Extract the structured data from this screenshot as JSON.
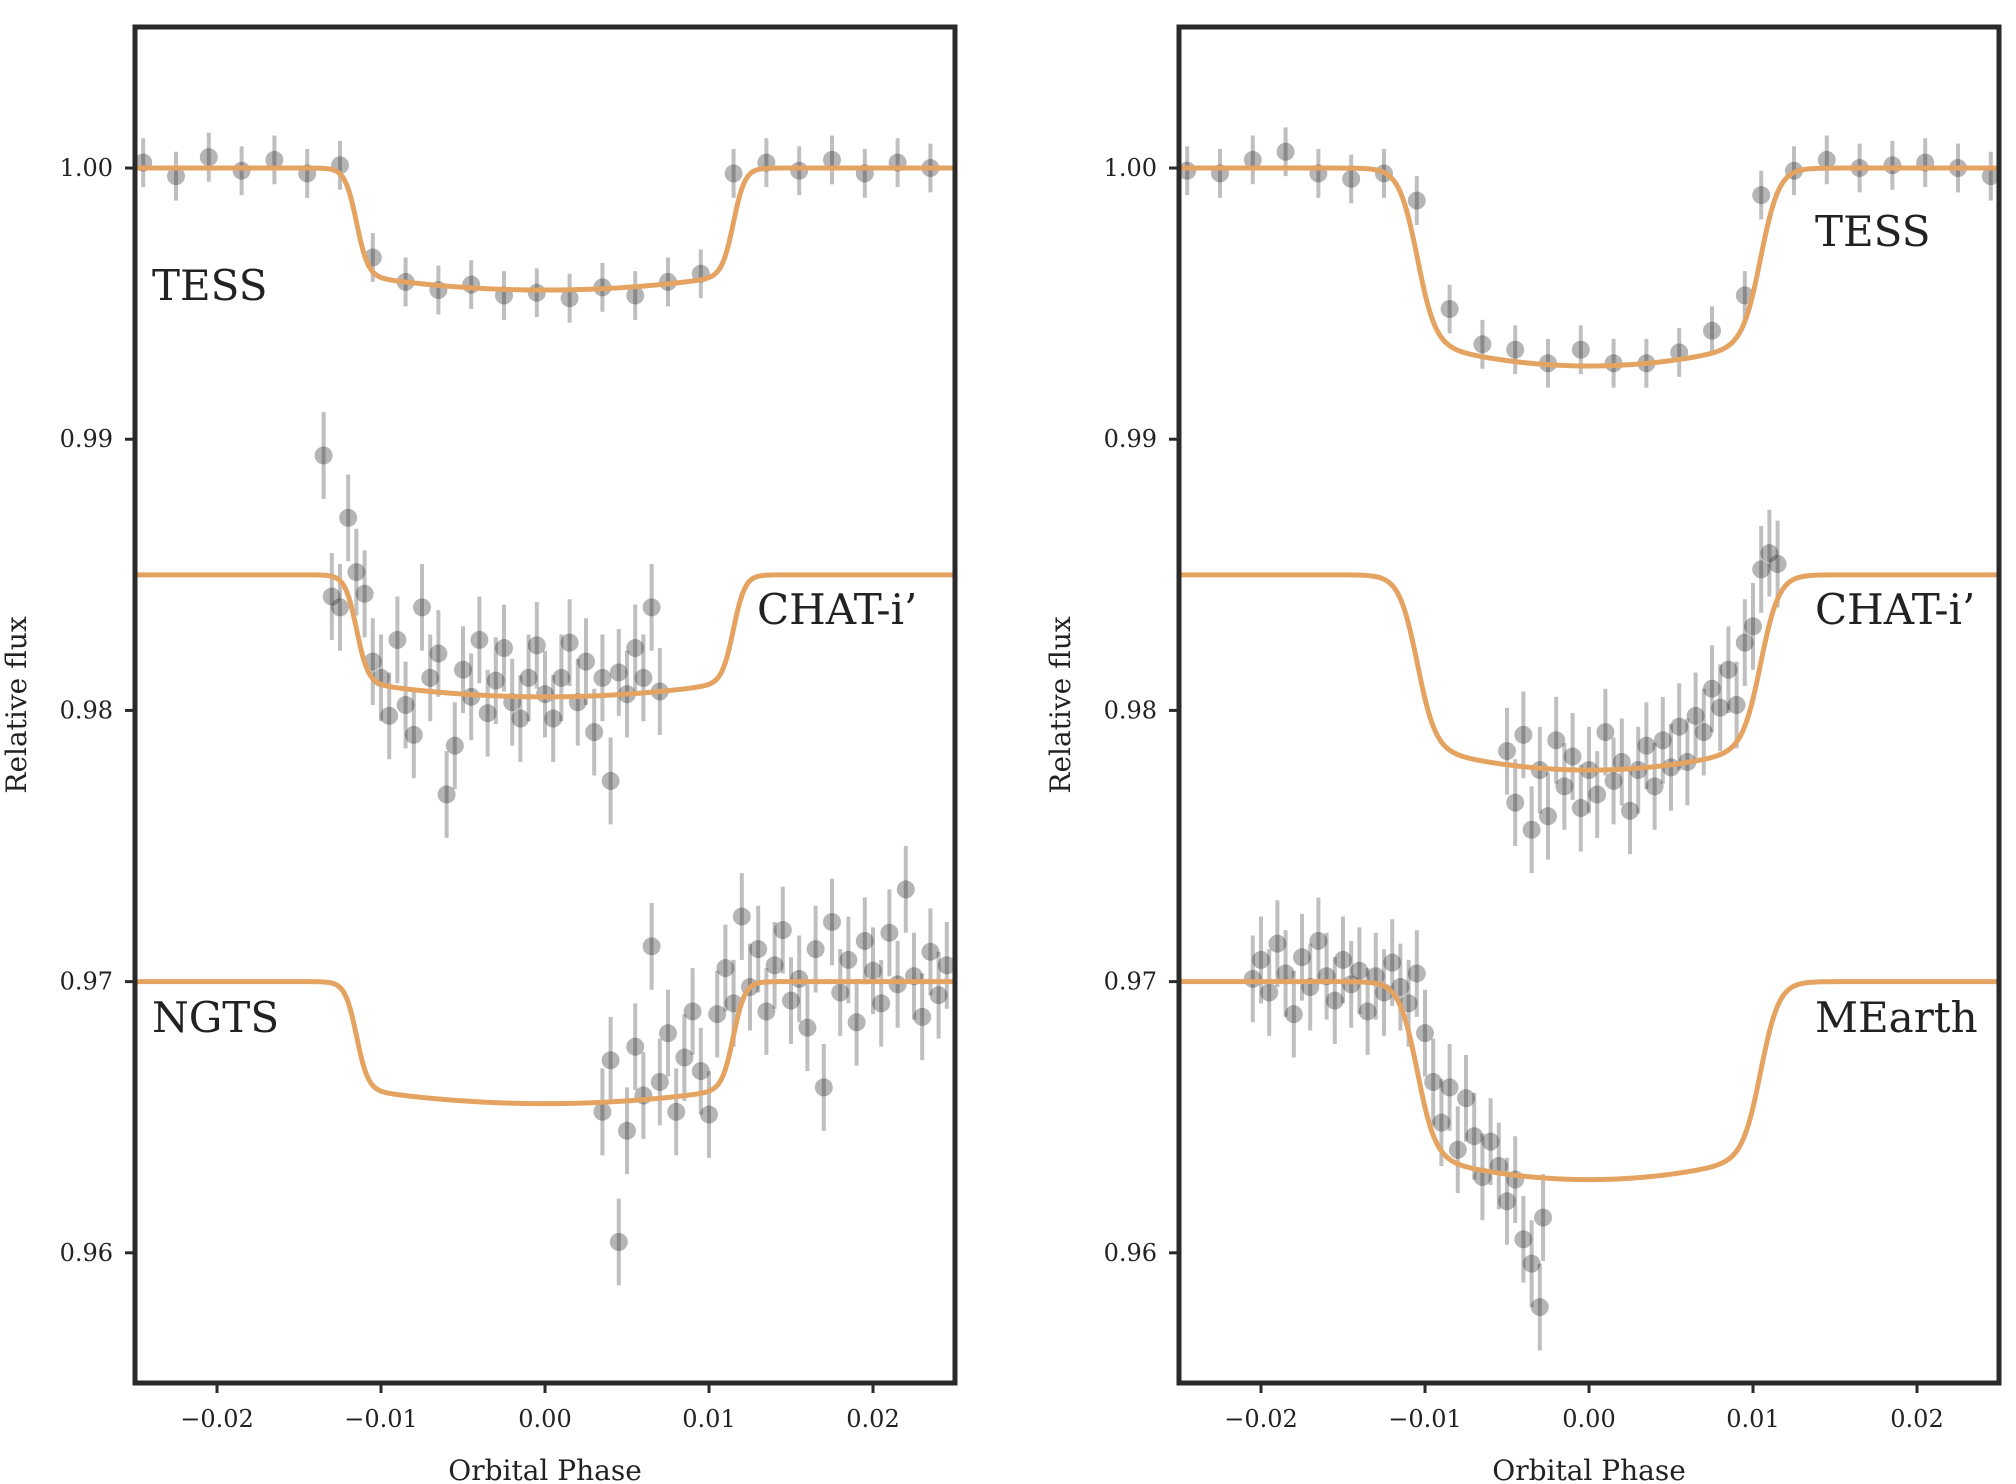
{
  "chart_data": [
    {
      "type": "scatter",
      "panel": "left",
      "xlabel": "Orbital Phase",
      "ylabel": "Relative flux",
      "xlim": [
        -0.025,
        0.025
      ],
      "ylim": [
        0.9552,
        1.0052
      ],
      "xticks": [
        -0.02,
        -0.01,
        0.0,
        0.01,
        0.02
      ],
      "xtick_labels": [
        "−0.02",
        "−0.01",
        "0.00",
        "0.01",
        "0.02"
      ],
      "yticks": [
        0.96,
        0.97,
        0.98,
        0.99,
        1.0
      ],
      "ytick_labels": [
        "0.96",
        "0.97",
        "0.98",
        "0.99",
        "1.00"
      ],
      "grid": false,
      "series": [
        {
          "name": "TESS",
          "model": {
            "baseline": 1.0,
            "depth": 0.0045,
            "t_ingress": -0.0115,
            "t_egress": 0.0115,
            "ingress_width": 0.0014
          },
          "data_points": [
            [
              -0.0245,
              1.0002
            ],
            [
              -0.0225,
              0.9997
            ],
            [
              -0.0205,
              1.0004
            ],
            [
              -0.0185,
              0.9999
            ],
            [
              -0.0165,
              1.0003
            ],
            [
              -0.0145,
              0.9998
            ],
            [
              -0.0125,
              1.0001
            ],
            [
              -0.0105,
              0.9967
            ],
            [
              -0.0085,
              0.9958
            ],
            [
              -0.0065,
              0.9955
            ],
            [
              -0.0045,
              0.9957
            ],
            [
              -0.0025,
              0.9953
            ],
            [
              -0.0005,
              0.9954
            ],
            [
              0.0015,
              0.9952
            ],
            [
              0.0035,
              0.9956
            ],
            [
              0.0055,
              0.9953
            ],
            [
              0.0075,
              0.9958
            ],
            [
              0.0095,
              0.9961
            ],
            [
              0.0115,
              0.9998
            ],
            [
              0.0135,
              1.0002
            ],
            [
              0.0155,
              0.9999
            ],
            [
              0.0175,
              1.0003
            ],
            [
              0.0195,
              0.9998
            ],
            [
              0.0215,
              1.0002
            ],
            [
              0.0235,
              1.0
            ]
          ]
        },
        {
          "name": "CHAT-i’",
          "model": {
            "baseline": 0.985,
            "depth": 0.0045,
            "t_ingress": -0.0115,
            "t_egress": 0.0115,
            "ingress_width": 0.0014
          },
          "data_points": [
            [
              -0.0135,
              0.9894
            ],
            [
              -0.013,
              0.9842
            ],
            [
              -0.0125,
              0.9838
            ],
            [
              -0.012,
              0.9871
            ],
            [
              -0.0115,
              0.9851
            ],
            [
              -0.011,
              0.9843
            ],
            [
              -0.0105,
              0.9818
            ],
            [
              -0.01,
              0.9812
            ],
            [
              -0.0095,
              0.9798
            ],
            [
              -0.009,
              0.9826
            ],
            [
              -0.0085,
              0.9802
            ],
            [
              -0.008,
              0.9791
            ],
            [
              -0.0075,
              0.9838
            ],
            [
              -0.007,
              0.9812
            ],
            [
              -0.0065,
              0.9821
            ],
            [
              -0.006,
              0.9769
            ],
            [
              -0.0055,
              0.9787
            ],
            [
              -0.005,
              0.9815
            ],
            [
              -0.0045,
              0.9805
            ],
            [
              -0.004,
              0.9826
            ],
            [
              -0.0035,
              0.9799
            ],
            [
              -0.003,
              0.9811
            ],
            [
              -0.0025,
              0.9823
            ],
            [
              -0.002,
              0.9803
            ],
            [
              -0.0015,
              0.9797
            ],
            [
              -0.001,
              0.9812
            ],
            [
              -0.0005,
              0.9824
            ],
            [
              0.0,
              0.9806
            ],
            [
              0.0005,
              0.9797
            ],
            [
              0.001,
              0.9812
            ],
            [
              0.0015,
              0.9825
            ],
            [
              0.002,
              0.9803
            ],
            [
              0.0025,
              0.9818
            ],
            [
              0.003,
              0.9792
            ],
            [
              0.0035,
              0.9812
            ],
            [
              0.004,
              0.9774
            ],
            [
              0.0045,
              0.9814
            ],
            [
              0.005,
              0.9806
            ],
            [
              0.0055,
              0.9823
            ],
            [
              0.006,
              0.9812
            ],
            [
              0.0065,
              0.9838
            ],
            [
              0.007,
              0.9807
            ]
          ]
        },
        {
          "name": "NGTS",
          "model": {
            "baseline": 0.97,
            "depth": 0.0045,
            "t_ingress": -0.0115,
            "t_egress": 0.0115,
            "ingress_width": 0.0014
          },
          "data_points": [
            [
              0.0035,
              0.9652
            ],
            [
              0.004,
              0.9671
            ],
            [
              0.0045,
              0.9604
            ],
            [
              0.005,
              0.9645
            ],
            [
              0.0055,
              0.9676
            ],
            [
              0.006,
              0.9658
            ],
            [
              0.0065,
              0.9713
            ],
            [
              0.007,
              0.9663
            ],
            [
              0.0075,
              0.9681
            ],
            [
              0.008,
              0.9652
            ],
            [
              0.0085,
              0.9672
            ],
            [
              0.009,
              0.9689
            ],
            [
              0.0095,
              0.9667
            ],
            [
              0.01,
              0.9651
            ],
            [
              0.0105,
              0.9688
            ],
            [
              0.011,
              0.9705
            ],
            [
              0.0115,
              0.9692
            ],
            [
              0.012,
              0.9724
            ],
            [
              0.0125,
              0.9698
            ],
            [
              0.013,
              0.9712
            ],
            [
              0.0135,
              0.9689
            ],
            [
              0.014,
              0.9706
            ],
            [
              0.0145,
              0.9719
            ],
            [
              0.015,
              0.9693
            ],
            [
              0.0155,
              0.9701
            ],
            [
              0.016,
              0.9683
            ],
            [
              0.0165,
              0.9712
            ],
            [
              0.017,
              0.9661
            ],
            [
              0.0175,
              0.9722
            ],
            [
              0.018,
              0.9696
            ],
            [
              0.0185,
              0.9708
            ],
            [
              0.019,
              0.9685
            ],
            [
              0.0195,
              0.9715
            ],
            [
              0.02,
              0.9704
            ],
            [
              0.0205,
              0.9692
            ],
            [
              0.021,
              0.9718
            ],
            [
              0.0215,
              0.9699
            ],
            [
              0.022,
              0.9734
            ],
            [
              0.0225,
              0.9702
            ],
            [
              0.023,
              0.9687
            ],
            [
              0.0235,
              0.9711
            ],
            [
              0.024,
              0.9695
            ],
            [
              0.0245,
              0.9706
            ]
          ]
        }
      ]
    },
    {
      "type": "scatter",
      "panel": "right",
      "xlabel": "Orbital Phase",
      "ylabel": "Relative flux",
      "xlim": [
        -0.025,
        0.025
      ],
      "ylim": [
        0.9552,
        1.0052
      ],
      "xticks": [
        -0.02,
        -0.01,
        0.0,
        0.01,
        0.02
      ],
      "xtick_labels": [
        "−0.02",
        "−0.01",
        "0.00",
        "0.01",
        "0.02"
      ],
      "yticks": [
        0.96,
        0.97,
        0.98,
        0.99,
        1.0
      ],
      "ytick_labels": [
        "0.96",
        "0.97",
        "0.98",
        "0.99",
        "1.00"
      ],
      "grid": false,
      "series": [
        {
          "name": "TESS",
          "model": {
            "baseline": 1.0,
            "depth": 0.0073,
            "t_ingress": -0.0105,
            "t_egress": 0.0105,
            "ingress_width": 0.0022
          },
          "data_points": [
            [
              -0.0245,
              0.9999
            ],
            [
              -0.0225,
              0.9998
            ],
            [
              -0.0205,
              1.0003
            ],
            [
              -0.0185,
              1.0006
            ],
            [
              -0.0165,
              0.9998
            ],
            [
              -0.0145,
              0.9996
            ],
            [
              -0.0125,
              0.9998
            ],
            [
              -0.0105,
              0.9988
            ],
            [
              -0.0085,
              0.9948
            ],
            [
              -0.0065,
              0.9935
            ],
            [
              -0.0045,
              0.9933
            ],
            [
              -0.0025,
              0.9928
            ],
            [
              -0.0005,
              0.9933
            ],
            [
              0.0015,
              0.9928
            ],
            [
              0.0035,
              0.9928
            ],
            [
              0.0055,
              0.9932
            ],
            [
              0.0075,
              0.994
            ],
            [
              0.0095,
              0.9953
            ],
            [
              0.0105,
              0.999
            ],
            [
              0.0125,
              0.9999
            ],
            [
              0.0145,
              1.0003
            ],
            [
              0.0165,
              1.0
            ],
            [
              0.0185,
              1.0001
            ],
            [
              0.0205,
              1.0002
            ],
            [
              0.0225,
              1.0
            ],
            [
              0.0245,
              0.9997
            ]
          ]
        },
        {
          "name": "CHAT-i’",
          "model": {
            "baseline": 0.985,
            "depth": 0.0072,
            "t_ingress": -0.0105,
            "t_egress": 0.0105,
            "ingress_width": 0.0022
          },
          "data_points": [
            [
              -0.005,
              0.9785
            ],
            [
              -0.0045,
              0.9766
            ],
            [
              -0.004,
              0.9791
            ],
            [
              -0.0035,
              0.9756
            ],
            [
              -0.003,
              0.9778
            ],
            [
              -0.0025,
              0.9761
            ],
            [
              -0.002,
              0.9789
            ],
            [
              -0.0015,
              0.9772
            ],
            [
              -0.001,
              0.9783
            ],
            [
              -0.0005,
              0.9764
            ],
            [
              0.0,
              0.9778
            ],
            [
              0.0005,
              0.9769
            ],
            [
              0.001,
              0.9792
            ],
            [
              0.0015,
              0.9774
            ],
            [
              0.002,
              0.9781
            ],
            [
              0.0025,
              0.9763
            ],
            [
              0.003,
              0.9778
            ],
            [
              0.0035,
              0.9787
            ],
            [
              0.004,
              0.9772
            ],
            [
              0.0045,
              0.9789
            ],
            [
              0.005,
              0.9779
            ],
            [
              0.0055,
              0.9794
            ],
            [
              0.006,
              0.9781
            ],
            [
              0.0065,
              0.9798
            ],
            [
              0.007,
              0.9792
            ],
            [
              0.0075,
              0.9808
            ],
            [
              0.008,
              0.9801
            ],
            [
              0.0085,
              0.9815
            ],
            [
              0.009,
              0.9802
            ],
            [
              0.0095,
              0.9825
            ],
            [
              0.01,
              0.9831
            ],
            [
              0.0105,
              0.9852
            ],
            [
              0.011,
              0.9858
            ],
            [
              0.0115,
              0.9854
            ]
          ]
        },
        {
          "name": "MEarth",
          "model": {
            "baseline": 0.97,
            "depth": 0.0073,
            "t_ingress": -0.0105,
            "t_egress": 0.0105,
            "ingress_width": 0.0022
          },
          "data_points": [
            [
              -0.0205,
              0.9701
            ],
            [
              -0.02,
              0.9708
            ],
            [
              -0.0195,
              0.9696
            ],
            [
              -0.019,
              0.9714
            ],
            [
              -0.0185,
              0.9703
            ],
            [
              -0.018,
              0.9688
            ],
            [
              -0.0175,
              0.9709
            ],
            [
              -0.017,
              0.9698
            ],
            [
              -0.0165,
              0.9715
            ],
            [
              -0.016,
              0.9702
            ],
            [
              -0.0155,
              0.9693
            ],
            [
              -0.015,
              0.9708
            ],
            [
              -0.0145,
              0.9699
            ],
            [
              -0.014,
              0.9704
            ],
            [
              -0.0135,
              0.9689
            ],
            [
              -0.013,
              0.9702
            ],
            [
              -0.0125,
              0.9696
            ],
            [
              -0.012,
              0.9707
            ],
            [
              -0.0115,
              0.9698
            ],
            [
              -0.011,
              0.9692
            ],
            [
              -0.0105,
              0.9703
            ],
            [
              -0.01,
              0.9681
            ],
            [
              -0.0095,
              0.9663
            ],
            [
              -0.009,
              0.9648
            ],
            [
              -0.0085,
              0.9661
            ],
            [
              -0.008,
              0.9638
            ],
            [
              -0.0075,
              0.9657
            ],
            [
              -0.007,
              0.9643
            ],
            [
              -0.0065,
              0.9628
            ],
            [
              -0.006,
              0.9641
            ],
            [
              -0.0055,
              0.9632
            ],
            [
              -0.005,
              0.9619
            ],
            [
              -0.0045,
              0.9627
            ],
            [
              -0.004,
              0.9605
            ],
            [
              -0.0035,
              0.9596
            ],
            [
              -0.003,
              0.958
            ],
            [
              -0.0028,
              0.9613
            ]
          ]
        }
      ]
    }
  ]
}
